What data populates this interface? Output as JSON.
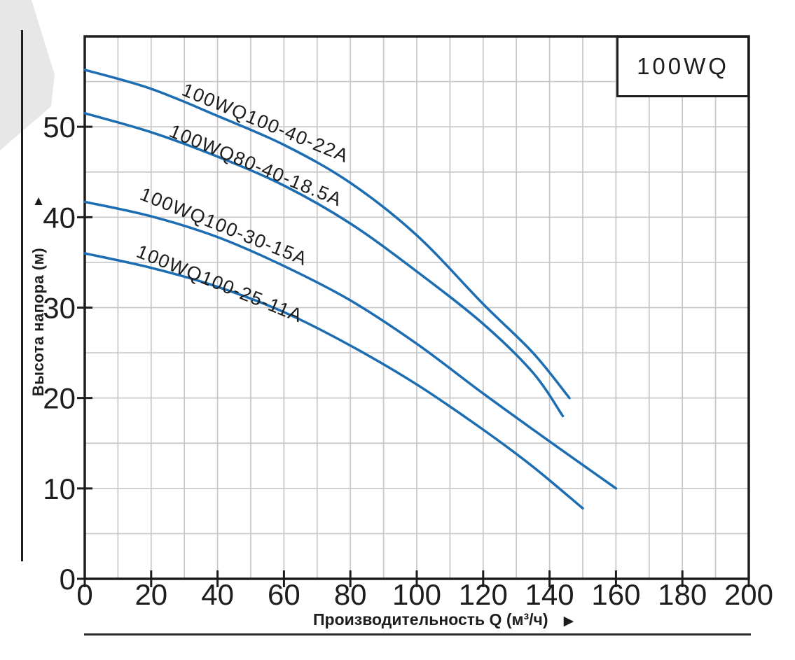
{
  "legend": {
    "label": "100WQ"
  },
  "icons": {
    "y_axis_arrow": "▲",
    "x_axis_arrow": "▶"
  },
  "colors": {
    "curve": "#1c6db1",
    "grid": "#c7c7c7",
    "axis": "#1d1d1b",
    "decoration": "#e7e7e7"
  },
  "chart_data": {
    "type": "line",
    "title": "100WQ",
    "xlabel": "Производительность Q (м³/ч)",
    "ylabel": "Высота напора (м)",
    "xlim": [
      0,
      200
    ],
    "ylim": [
      0,
      60
    ],
    "x_ticks": [
      0,
      20,
      40,
      60,
      80,
      100,
      120,
      140,
      160,
      180,
      200
    ],
    "y_ticks": [
      0,
      10,
      20,
      30,
      40,
      50
    ],
    "x_gridline_step": 10,
    "y_gridline_step": 5,
    "grid": "on",
    "legend_position": "top-right",
    "series": [
      {
        "name": "100WQ100-40-22A",
        "points": [
          [
            0,
            56.3
          ],
          [
            20,
            54.2
          ],
          [
            40,
            51.2
          ],
          [
            60,
            48.0
          ],
          [
            80,
            43.8
          ],
          [
            100,
            38.0
          ],
          [
            120,
            30.4
          ],
          [
            135,
            25.0
          ],
          [
            146,
            20.0
          ]
        ]
      },
      {
        "name": "100WQ80-40-18.5A",
        "points": [
          [
            0,
            51.5
          ],
          [
            20,
            49.4
          ],
          [
            40,
            46.7
          ],
          [
            60,
            43.5
          ],
          [
            80,
            39.3
          ],
          [
            100,
            34.0
          ],
          [
            120,
            28.2
          ],
          [
            135,
            22.8
          ],
          [
            144,
            18.0
          ]
        ]
      },
      {
        "name": "100WQ100-30-15A",
        "points": [
          [
            0,
            41.7
          ],
          [
            20,
            40.1
          ],
          [
            40,
            37.8
          ],
          [
            60,
            34.6
          ],
          [
            80,
            30.8
          ],
          [
            100,
            26.0
          ],
          [
            120,
            20.5
          ],
          [
            140,
            15.2
          ],
          [
            160,
            10.0
          ]
        ]
      },
      {
        "name": "100WQ100-25-11A",
        "points": [
          [
            0,
            36.0
          ],
          [
            20,
            34.4
          ],
          [
            40,
            32.3
          ],
          [
            60,
            29.5
          ],
          [
            80,
            25.8
          ],
          [
            100,
            21.5
          ],
          [
            120,
            16.5
          ],
          [
            135,
            12.4
          ],
          [
            150,
            7.8
          ]
        ]
      }
    ]
  }
}
